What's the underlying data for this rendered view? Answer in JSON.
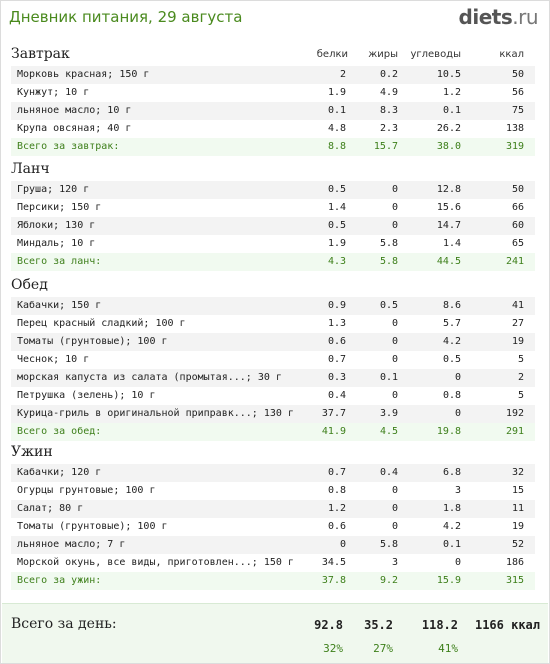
{
  "header": {
    "title": "Дневник питания, 29 августа",
    "logo_main": "diets",
    "logo_tld": ".ru"
  },
  "columns": {
    "protein": "белки",
    "fat": "жиры",
    "carbs": "углеводы",
    "kcal": "ккал"
  },
  "sections": [
    {
      "title": "Завтрак",
      "items": [
        {
          "name": "Морковь красная; 150 г",
          "protein": "2",
          "fat": "0.2",
          "carbs": "10.5",
          "kcal": "50"
        },
        {
          "name": "Кунжут; 10 г",
          "protein": "1.9",
          "fat": "4.9",
          "carbs": "1.2",
          "kcal": "56"
        },
        {
          "name": "льняное масло; 10 г",
          "protein": "0.1",
          "fat": "8.3",
          "carbs": "0.1",
          "kcal": "75"
        },
        {
          "name": "Крупа овсяная; 40 г",
          "protein": "4.8",
          "fat": "2.3",
          "carbs": "26.2",
          "kcal": "138"
        }
      ],
      "total": {
        "label": "Всего за завтрак:",
        "protein": "8.8",
        "fat": "15.7",
        "carbs": "38.0",
        "kcal": "319"
      }
    },
    {
      "title": "Ланч",
      "items": [
        {
          "name": "Груша; 120 г",
          "protein": "0.5",
          "fat": "0",
          "carbs": "12.8",
          "kcal": "50"
        },
        {
          "name": "Персики; 150 г",
          "protein": "1.4",
          "fat": "0",
          "carbs": "15.6",
          "kcal": "66"
        },
        {
          "name": "Яблоки; 130 г",
          "protein": "0.5",
          "fat": "0",
          "carbs": "14.7",
          "kcal": "60"
        },
        {
          "name": "Миндаль; 10 г",
          "protein": "1.9",
          "fat": "5.8",
          "carbs": "1.4",
          "kcal": "65"
        }
      ],
      "total": {
        "label": "Всего за ланч:",
        "protein": "4.3",
        "fat": "5.8",
        "carbs": "44.5",
        "kcal": "241"
      }
    },
    {
      "title": "Обед",
      "items": [
        {
          "name": "Кабачки; 150 г",
          "protein": "0.9",
          "fat": "0.5",
          "carbs": "8.6",
          "kcal": "41"
        },
        {
          "name": "Перец красный сладкий; 100 г",
          "protein": "1.3",
          "fat": "0",
          "carbs": "5.7",
          "kcal": "27"
        },
        {
          "name": "Томаты (грунтовые); 100 г",
          "protein": "0.6",
          "fat": "0",
          "carbs": "4.2",
          "kcal": "19"
        },
        {
          "name": "Чеснок; 10 г",
          "protein": "0.7",
          "fat": "0",
          "carbs": "0.5",
          "kcal": "5"
        },
        {
          "name": "морская капуста из салата (промытая...; 30 г",
          "protein": "0.3",
          "fat": "0.1",
          "carbs": "0",
          "kcal": "2"
        },
        {
          "name": "Петрушка (зелень); 10 г",
          "protein": "0.4",
          "fat": "0",
          "carbs": "0.8",
          "kcal": "5"
        },
        {
          "name": "Курица-гриль в оригинальной приправк...; 130 г",
          "protein": "37.7",
          "fat": "3.9",
          "carbs": "0",
          "kcal": "192"
        }
      ],
      "total": {
        "label": "Всего за обед:",
        "protein": "41.9",
        "fat": "4.5",
        "carbs": "19.8",
        "kcal": "291"
      }
    },
    {
      "title": "Ужин",
      "items": [
        {
          "name": "Кабачки; 120 г",
          "protein": "0.7",
          "fat": "0.4",
          "carbs": "6.8",
          "kcal": "32"
        },
        {
          "name": "Огурцы грунтовые; 100 г",
          "protein": "0.8",
          "fat": "0",
          "carbs": "3",
          "kcal": "15"
        },
        {
          "name": "Салат; 80 г",
          "protein": "1.2",
          "fat": "0",
          "carbs": "1.8",
          "kcal": "11"
        },
        {
          "name": "Томаты (грунтовые); 100 г",
          "protein": "0.6",
          "fat": "0",
          "carbs": "4.2",
          "kcal": "19"
        },
        {
          "name": "льняное масло; 7 г",
          "protein": "0",
          "fat": "5.8",
          "carbs": "0.1",
          "kcal": "52"
        },
        {
          "name": "Морской окунь, все виды, приготовлен...; 150 г",
          "protein": "34.5",
          "fat": "3",
          "carbs": "0",
          "kcal": "186"
        }
      ],
      "total": {
        "label": "Всего за ужин:",
        "protein": "37.8",
        "fat": "9.2",
        "carbs": "15.9",
        "kcal": "315"
      }
    }
  ],
  "day_total": {
    "label": "Всего за день:",
    "protein": "92.8",
    "fat": "35.2",
    "carbs": "118.2",
    "kcal": "1166 ккал",
    "protein_pct": "32%",
    "fat_pct": "27%",
    "carbs_pct": "41%"
  }
}
